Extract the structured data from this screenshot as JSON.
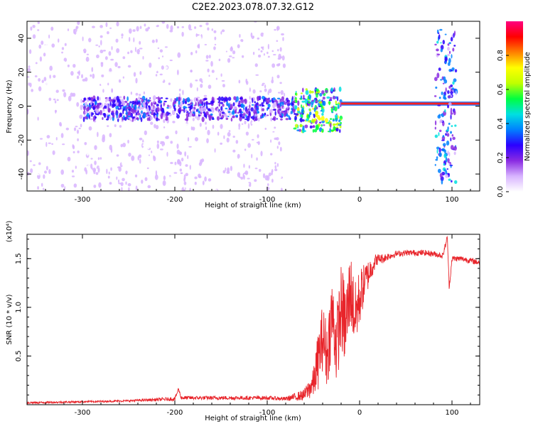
{
  "title": "C2E2.2023.078.07.32.G12",
  "chart_data": [
    {
      "type": "heatmap",
      "xlabel": "Height of straight line (km)",
      "ylabel": "Frequency (Hz)",
      "xlim": [
        -360,
        130
      ],
      "ylim": [
        -50,
        50
      ],
      "xticks": [
        -300,
        -200,
        -100,
        0,
        100
      ],
      "yticks": [
        -40,
        -20,
        0,
        20,
        40
      ],
      "colorbar": {
        "label": "Normalized spectral amplitude",
        "range": [
          0,
          1
        ],
        "ticks": [
          "0.0",
          "0.2",
          "0.4",
          "0.6",
          "0.8"
        ],
        "colormap": [
          "#ffffff",
          "#d8b4ff",
          "#8a2be2",
          "#2b00ff",
          "#0080ff",
          "#00e0e0",
          "#00ff40",
          "#c0ff00",
          "#ffff00",
          "#ff8000",
          "#ff0000",
          "#ff0080"
        ]
      },
      "regions": [
        {
          "name": "diffuse scatter",
          "x_range": [
            -360,
            -80
          ],
          "freq_range": [
            -50,
            50
          ],
          "amplitude": 0.05
        },
        {
          "name": "central band",
          "x_range": [
            -300,
            -70
          ],
          "freq_range": [
            -8,
            5
          ],
          "amplitude": 0.2
        },
        {
          "name": "transition",
          "x_range": [
            -70,
            -20
          ],
          "freq_range": [
            -15,
            10
          ],
          "amplitude": 0.4
        },
        {
          "name": "tone line",
          "x_range": [
            -20,
            130
          ],
          "freq_center": 1.5,
          "amplitude": 0.9
        },
        {
          "name": "burst",
          "x_range": [
            82,
            105
          ],
          "freq_range": [
            -45,
            45
          ],
          "amplitude": 0.25
        }
      ]
    },
    {
      "type": "line",
      "xlabel": "Height of straight line (km)",
      "ylabel": "SNR (10 * v/v)",
      "y_multiplier": "(x10⁴)",
      "xlim": [
        -360,
        130
      ],
      "ylim": [
        0,
        1.75
      ],
      "xticks": [
        -300,
        -200,
        -100,
        0,
        100
      ],
      "yticks": [
        "0.5",
        "1.0",
        "1.5"
      ],
      "color": "#e8242a",
      "series": [
        {
          "x": [
            -360,
            -300,
            -250,
            -200,
            -196,
            -193,
            -150,
            -100,
            -80,
            -60,
            -50,
            -45,
            -40,
            -35,
            -30,
            -25,
            -20,
            -15,
            -10,
            -5,
            0,
            5,
            10,
            15,
            20,
            25,
            30,
            40,
            50,
            60,
            70,
            80,
            90,
            95,
            97,
            100,
            110,
            120,
            130
          ],
          "y": [
            0.02,
            0.03,
            0.04,
            0.06,
            0.16,
            0.07,
            0.07,
            0.07,
            0.06,
            0.1,
            0.22,
            0.45,
            0.7,
            0.5,
            0.95,
            0.6,
            1.0,
            0.8,
            1.2,
            0.9,
            1.1,
            1.25,
            1.35,
            1.45,
            1.5,
            1.5,
            1.52,
            1.55,
            1.56,
            1.56,
            1.56,
            1.55,
            1.53,
            1.72,
            1.2,
            1.5,
            1.5,
            1.48,
            1.46
          ],
          "noise": [
            0.01,
            0.01,
            0.01,
            0.02,
            0.02,
            0.02,
            0.02,
            0.02,
            0.02,
            0.06,
            0.15,
            0.3,
            0.35,
            0.35,
            0.4,
            0.4,
            0.45,
            0.45,
            0.4,
            0.35,
            0.3,
            0.2,
            0.15,
            0.1,
            0.05,
            0.05,
            0.04,
            0.03,
            0.03,
            0.03,
            0.03,
            0.03,
            0.03,
            0.03,
            0.03,
            0.03,
            0.03,
            0.03,
            0.03
          ]
        }
      ]
    }
  ]
}
